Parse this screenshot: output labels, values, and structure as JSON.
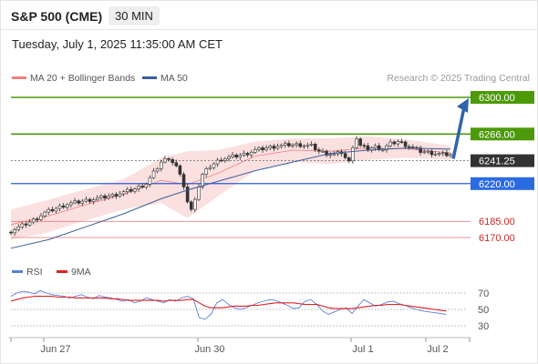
{
  "header": {
    "instrument": "S&P 500 (CME)",
    "timeframe": "30 MIN",
    "datetime": "Tuesday, July 1, 2025 11:35:00 AM CET"
  },
  "legend": {
    "bollinger_label": "MA 20 + Bollinger Bands",
    "ma50_label": "MA 50",
    "credit": "Research © 2025 Trading Central",
    "colors": {
      "bollinger": "#f08080",
      "ma50": "#3a5f9a"
    }
  },
  "rsi_legend": {
    "rsi_label": "RSI",
    "ma_label": "9MA",
    "colors": {
      "rsi": "#5b7fd6",
      "ma": "#dd2222"
    }
  },
  "chart_data": [
    {
      "type": "candlestick",
      "ylim": [
        6145,
        6310
      ],
      "levels": [
        {
          "value": 6300.0,
          "label": "6300.00",
          "color": "#4c9a0a",
          "style": "resistance"
        },
        {
          "value": 6266.0,
          "label": "6266.00",
          "color": "#4c9a0a",
          "style": "resistance"
        },
        {
          "value": 6241.25,
          "label": "6241.25",
          "color": "#333333",
          "style": "last-price"
        },
        {
          "value": 6220.0,
          "label": "6220.00",
          "color": "#2a5bd7",
          "style": "pivot"
        },
        {
          "value": 6185.0,
          "label": "6185.00",
          "color": "#e07070",
          "style": "support-thin"
        },
        {
          "value": 6170.0,
          "label": "6170.00",
          "color": "#e07070",
          "style": "support-thin"
        }
      ],
      "price_path": [
        [
          0,
          6176
        ],
        [
          3,
          6181
        ],
        [
          6,
          6186
        ],
        [
          9,
          6193
        ],
        [
          12,
          6197
        ],
        [
          15,
          6201
        ],
        [
          18,
          6203
        ],
        [
          21,
          6205
        ],
        [
          24,
          6207
        ],
        [
          27,
          6209
        ],
        [
          30,
          6212
        ],
        [
          33,
          6215
        ],
        [
          36,
          6220
        ],
        [
          38,
          6230
        ],
        [
          40,
          6240
        ],
        [
          42,
          6244
        ],
        [
          44,
          6236
        ],
        [
          46,
          6218
        ],
        [
          47,
          6203
        ],
        [
          48,
          6195
        ],
        [
          49,
          6207
        ],
        [
          51,
          6228
        ],
        [
          53,
          6236
        ],
        [
          56,
          6243
        ],
        [
          59,
          6245
        ],
        [
          62,
          6247
        ],
        [
          65,
          6251
        ],
        [
          68,
          6253
        ],
        [
          71,
          6255
        ],
        [
          74,
          6256
        ],
        [
          77,
          6256
        ],
        [
          80,
          6255
        ],
        [
          82,
          6250
        ],
        [
          84,
          6248
        ],
        [
          86,
          6247
        ],
        [
          88,
          6249
        ],
        [
          89,
          6244
        ],
        [
          90,
          6240
        ],
        [
          91,
          6255
        ],
        [
          92,
          6262
        ],
        [
          93,
          6255
        ],
        [
          95,
          6252
        ],
        [
          97,
          6254
        ],
        [
          99,
          6252
        ],
        [
          101,
          6257
        ],
        [
          103,
          6259
        ],
        [
          105,
          6256
        ],
        [
          107,
          6253
        ],
        [
          109,
          6250
        ],
        [
          111,
          6249
        ],
        [
          113,
          6248
        ],
        [
          115,
          6247
        ],
        [
          117,
          6247
        ]
      ],
      "projection": {
        "from": 6243,
        "to": 6300
      },
      "ma50_path": [
        [
          0,
          6160
        ],
        [
          10,
          6168
        ],
        [
          20,
          6180
        ],
        [
          30,
          6192
        ],
        [
          40,
          6206
        ],
        [
          47,
          6214
        ],
        [
          55,
          6222
        ],
        [
          65,
          6232
        ],
        [
          75,
          6240
        ],
        [
          85,
          6248
        ],
        [
          95,
          6251
        ],
        [
          105,
          6253
        ],
        [
          117,
          6252
        ]
      ],
      "bollinger_band": {
        "upper": [
          [
            0,
            6196
          ],
          [
            10,
            6205
          ],
          [
            20,
            6215
          ],
          [
            30,
            6224
          ],
          [
            40,
            6244
          ],
          [
            47,
            6250
          ],
          [
            55,
            6251
          ],
          [
            65,
            6259
          ],
          [
            75,
            6262
          ],
          [
            85,
            6262
          ],
          [
            95,
            6264
          ],
          [
            105,
            6261
          ],
          [
            117,
            6255
          ]
        ],
        "lower": [
          [
            0,
            6168
          ],
          [
            10,
            6175
          ],
          [
            20,
            6186
          ],
          [
            30,
            6196
          ],
          [
            40,
            6202
          ],
          [
            47,
            6188
          ],
          [
            55,
            6208
          ],
          [
            65,
            6232
          ],
          [
            75,
            6240
          ],
          [
            85,
            6238
          ],
          [
            95,
            6242
          ],
          [
            105,
            6244
          ],
          [
            117,
            6242
          ]
        ]
      },
      "x_ticks": [
        "Jun 27",
        "Jun 30",
        "Jul 1",
        "Jul 2"
      ]
    },
    {
      "type": "line",
      "ylim": [
        20,
        85
      ],
      "levels": [
        70,
        50,
        30
      ],
      "series": [
        {
          "name": "RSI",
          "values": [
            66,
            70,
            72,
            71,
            69,
            73,
            70,
            68,
            67,
            66,
            64,
            66,
            68,
            65,
            63,
            67,
            65,
            64,
            62,
            60,
            62,
            58,
            60,
            64,
            62,
            60,
            58,
            62,
            60,
            64,
            66,
            63,
            40,
            38,
            44,
            58,
            62,
            56,
            52,
            50,
            52,
            55,
            58,
            60,
            62,
            61,
            58,
            55,
            51,
            52,
            60,
            62,
            56,
            48,
            44,
            47,
            50,
            52,
            45,
            54,
            62,
            58,
            54,
            56,
            59,
            60,
            57,
            55,
            52,
            50,
            48,
            47,
            46,
            45,
            44
          ]
        },
        {
          "name": "9MA",
          "values": [
            60,
            62,
            64,
            65,
            66,
            66,
            66,
            66,
            65,
            65,
            65,
            64,
            64,
            64,
            64,
            64,
            64,
            63,
            63,
            62,
            61,
            61,
            61,
            61,
            61,
            61,
            60,
            61,
            61,
            61,
            62,
            62,
            58,
            54,
            52,
            52,
            52,
            53,
            54,
            54,
            54,
            55,
            55,
            56,
            57,
            58,
            58,
            58,
            58,
            57,
            56,
            56,
            56,
            54,
            52,
            51,
            51,
            51,
            51,
            52,
            53,
            54,
            55,
            55,
            56,
            56,
            56,
            55,
            54,
            53,
            52,
            51,
            50,
            49,
            48
          ]
        }
      ]
    }
  ]
}
